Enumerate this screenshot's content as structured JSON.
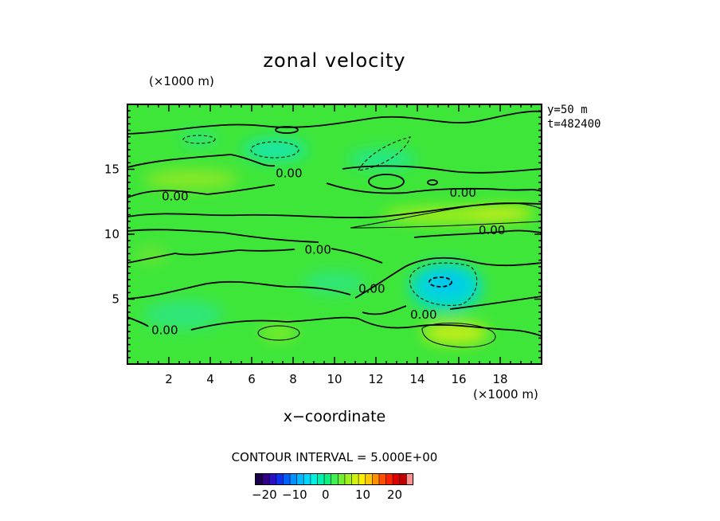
{
  "chart_data": {
    "type": "heatmap",
    "title": "zonal velocity",
    "xlabel": "x−coordinate",
    "x_multiplier": "(×1000 m)",
    "y_multiplier": "(×1000 m)",
    "xlim": [
      0,
      20
    ],
    "ylim": [
      0,
      20
    ],
    "x_ticks": [
      "2",
      "4",
      "6",
      "8",
      "10",
      "12",
      "14",
      "16",
      "18"
    ],
    "x_tick_values": [
      2,
      4,
      6,
      8,
      10,
      12,
      14,
      16,
      18
    ],
    "y_ticks": [
      "5",
      "10",
      "15"
    ],
    "y_tick_values": [
      5,
      10,
      15
    ],
    "info": [
      "y=50  m",
      "t=482400"
    ],
    "contour_interval_label": "CONTOUR INTERVAL = 5.000E+00",
    "contour_labels": [
      {
        "text": "0.00",
        "x": 7.8,
        "y": 14.7
      },
      {
        "text": "0.00",
        "x": 2.3,
        "y": 12.9
      },
      {
        "text": "0.00",
        "x": 16.2,
        "y": 13.2
      },
      {
        "text": "0.00",
        "x": 17.6,
        "y": 10.3
      },
      {
        "text": "0.00",
        "x": 9.2,
        "y": 8.8
      },
      {
        "text": "0.00",
        "x": 11.8,
        "y": 5.8
      },
      {
        "text": "0.00",
        "x": 14.3,
        "y": 3.8
      },
      {
        "text": "0.00",
        "x": 1.8,
        "y": 2.6
      }
    ],
    "colorbar": {
      "ticks": [
        "−20",
        "−10",
        "0",
        "10",
        "20"
      ],
      "colors": [
        "#1a004d",
        "#32008a",
        "#2a10c8",
        "#1030f0",
        "#0060ff",
        "#0090ff",
        "#00b8ff",
        "#00d8ff",
        "#00f0e0",
        "#00f0b0",
        "#10f080",
        "#40f050",
        "#70f030",
        "#a0f020",
        "#d0f010",
        "#f8f000",
        "#ffc800",
        "#ff9000",
        "#ff5000",
        "#ff2000",
        "#e00000",
        "#c00000",
        "#ff9090"
      ]
    }
  }
}
